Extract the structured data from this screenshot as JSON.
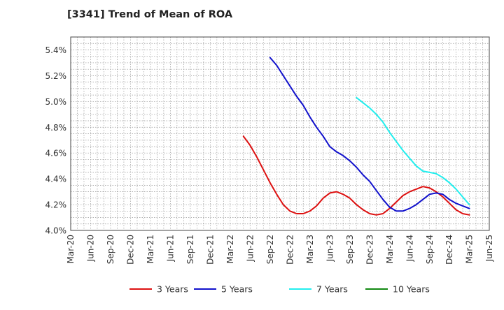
{
  "chart_data": {
    "type": "line",
    "title": "[3341]  Trend of Mean of ROA",
    "xlabel": "",
    "ylabel": "",
    "ylim": [
      4.0,
      5.5
    ],
    "yticks": [
      4.0,
      4.2,
      4.4,
      4.6,
      4.8,
      5.0,
      5.2,
      5.4
    ],
    "ytick_labels": [
      "4.0%",
      "4.2%",
      "4.4%",
      "4.6%",
      "4.8%",
      "5.0%",
      "5.2%",
      "5.4%"
    ],
    "x_tick_labels": [
      "Mar-20",
      "Jun-20",
      "Sep-20",
      "Dec-20",
      "Mar-21",
      "Jun-21",
      "Sep-21",
      "Dec-21",
      "Mar-22",
      "Jun-22",
      "Sep-22",
      "Dec-22",
      "Mar-23",
      "Jun-23",
      "Sep-23",
      "Dec-23",
      "Mar-24",
      "Jun-24",
      "Sep-24",
      "Dec-24",
      "Mar-25",
      "Jun-25"
    ],
    "grid": true,
    "legend_position": "bottom",
    "series": [
      {
        "name": "3 Years",
        "color": "#dd1111",
        "values": [
          4.73,
          4.66,
          4.57,
          4.47,
          4.37,
          4.28,
          4.2,
          4.15,
          4.13,
          4.13,
          4.15,
          4.19,
          4.25,
          4.29,
          4.3,
          4.28,
          4.25,
          4.2,
          4.16,
          4.13,
          4.12,
          4.13,
          4.17,
          4.22,
          4.27,
          4.3,
          4.32,
          4.34,
          4.33,
          4.3,
          4.26,
          4.21,
          4.16,
          4.13,
          4.12
        ]
      },
      {
        "name": "5 Years",
        "color": "#1111cc",
        "values": [
          5.34,
          5.28,
          5.2,
          5.12,
          5.04,
          4.97,
          4.88,
          4.8,
          4.73,
          4.65,
          4.61,
          4.58,
          4.54,
          4.49,
          4.43,
          4.38,
          4.31,
          4.24,
          4.18,
          4.15,
          4.15,
          4.17,
          4.2,
          4.24,
          4.28,
          4.29,
          4.28,
          4.24,
          4.21,
          4.19,
          4.17
        ]
      },
      {
        "name": "7 Years",
        "color": "#22eeee",
        "values": [
          5.03,
          4.99,
          4.95,
          4.9,
          4.84,
          4.76,
          4.69,
          4.62,
          4.56,
          4.5,
          4.46,
          4.45,
          4.44,
          4.41,
          4.37,
          4.32,
          4.26,
          4.2
        ]
      },
      {
        "name": "10 Years",
        "color": "#118811",
        "values": []
      }
    ]
  }
}
